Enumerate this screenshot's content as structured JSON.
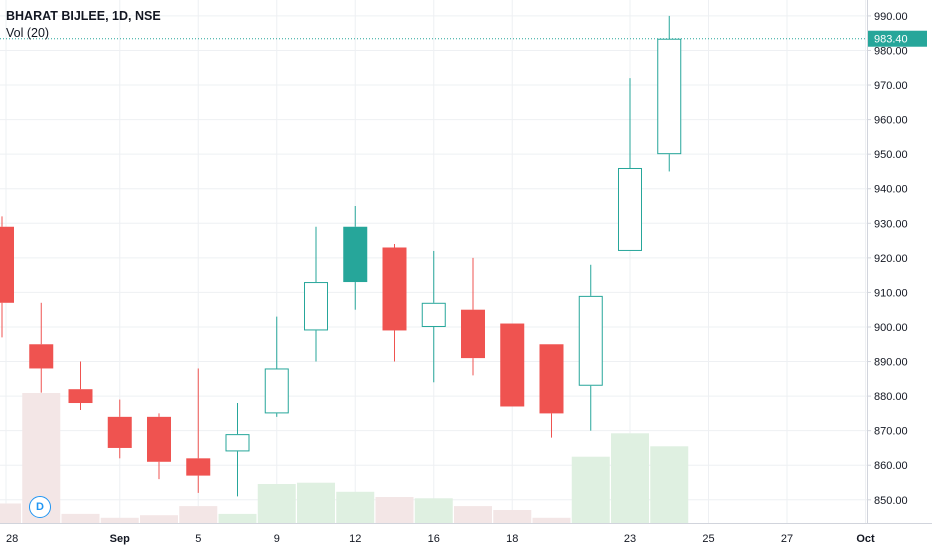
{
  "header": {
    "title": "BHARAT BIJLEE, 1D, NSE",
    "volume_label": "Vol (20)"
  },
  "events_badge": "D",
  "price_label": "983.40",
  "colors": {
    "up_border": "#26a69a",
    "up_fill_solid": "#26a69a",
    "down": "#ef5350",
    "volume_up": "#dff0e1",
    "volume_down": "#f3e6e6",
    "grid": "#eef0f3",
    "price_line": "#26a69a",
    "axis_text": "#131722"
  },
  "chart_data": {
    "type": "candlestick",
    "ylim": [
      843,
      992
    ],
    "y_ticks": [
      850,
      860,
      870,
      880,
      890,
      900,
      910,
      920,
      930,
      940,
      950,
      960,
      970,
      980,
      990
    ],
    "x_ticks": [
      "28",
      "Sep",
      "5",
      "9",
      "12",
      "16",
      "18",
      "23",
      "25",
      "27",
      "Oct"
    ],
    "current_price": 983.4,
    "candles": [
      {
        "open": 929,
        "high": 932,
        "low": 897,
        "close": 907,
        "volume": 0.15,
        "hollow": false
      },
      {
        "open": 895,
        "high": 907,
        "low": 881,
        "close": 888,
        "volume": 1.0,
        "hollow": false
      },
      {
        "open": 882,
        "high": 890,
        "low": 876,
        "close": 878,
        "volume": 0.07,
        "hollow": false
      },
      {
        "open": 874,
        "high": 879,
        "low": 862,
        "close": 865,
        "volume": 0.04,
        "hollow": false
      },
      {
        "open": 874,
        "high": 875,
        "low": 856,
        "close": 861,
        "volume": 0.06,
        "hollow": false
      },
      {
        "open": 862,
        "high": 888,
        "low": 852,
        "close": 857,
        "volume": 0.13,
        "hollow": false
      },
      {
        "open": 864,
        "high": 878,
        "low": 851,
        "close": 869,
        "volume": 0.07,
        "hollow": true
      },
      {
        "open": 875,
        "high": 903,
        "low": 874,
        "close": 888,
        "volume": 0.3,
        "hollow": true
      },
      {
        "open": 899,
        "high": 929,
        "low": 890,
        "close": 913,
        "volume": 0.31,
        "hollow": true
      },
      {
        "open": 913,
        "high": 935,
        "low": 905,
        "close": 929,
        "volume": 0.24,
        "hollow": false,
        "solid_up": true
      },
      {
        "open": 923,
        "high": 924,
        "low": 890,
        "close": 899,
        "volume": 0.2,
        "hollow": false
      },
      {
        "open": 900,
        "high": 922,
        "low": 884,
        "close": 907,
        "volume": 0.19,
        "hollow": true
      },
      {
        "open": 905,
        "high": 920,
        "low": 886,
        "close": 891,
        "volume": 0.13,
        "hollow": false
      },
      {
        "open": 901,
        "high": 901,
        "low": 877,
        "close": 877,
        "volume": 0.1,
        "hollow": false
      },
      {
        "open": 895,
        "high": 895,
        "low": 868,
        "close": 875,
        "volume": 0.04,
        "hollow": false
      },
      {
        "open": 883,
        "high": 918,
        "low": 870,
        "close": 909,
        "volume": 0.51,
        "hollow": true
      },
      {
        "open": 922,
        "high": 972,
        "low": 922,
        "close": 946,
        "volume": 0.69,
        "hollow": true
      },
      {
        "open": 950,
        "high": 990,
        "low": 945,
        "close": 983.4,
        "volume": 0.59,
        "hollow": true
      }
    ]
  }
}
